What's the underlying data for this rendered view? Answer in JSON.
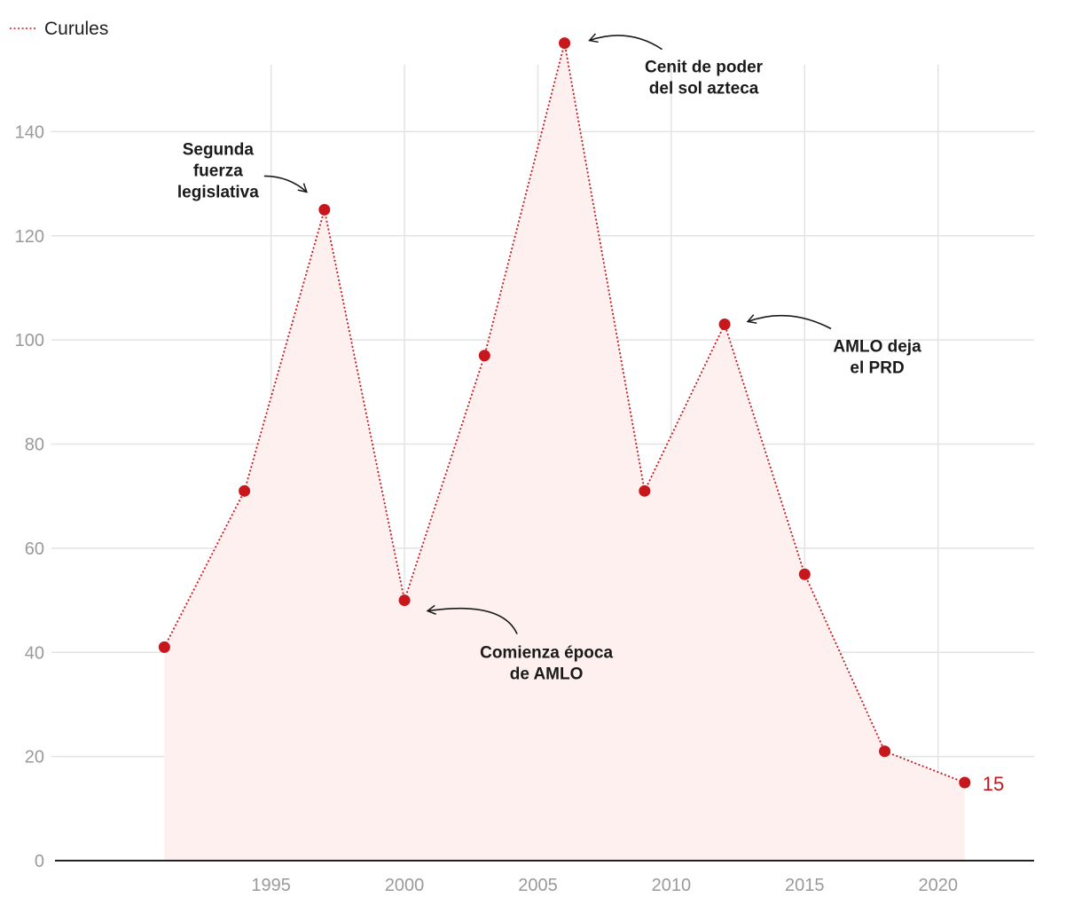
{
  "chart_data": {
    "type": "line",
    "x": [
      1991,
      1994,
      1997,
      2000,
      2003,
      2006,
      2009,
      2012,
      2015,
      2018,
      2021
    ],
    "series": [
      {
        "name": "Curules",
        "values": [
          41,
          71,
          125,
          50,
          97,
          157,
          71,
          103,
          55,
          21,
          15
        ]
      }
    ],
    "xticks": [
      1995,
      2000,
      2005,
      2010,
      2015,
      2020
    ],
    "yticks": [
      0,
      20,
      40,
      60,
      80,
      100,
      120,
      140
    ],
    "xlim": [
      1986.9,
      2023.6
    ],
    "ylim": [
      0,
      160
    ],
    "grid": true,
    "legend_position": "top-left",
    "end_label": "15",
    "annotations": [
      {
        "text": [
          "Segunda",
          "fuerza",
          "legislativa"
        ],
        "x": 1997,
        "y": 125,
        "side": "left"
      },
      {
        "text": [
          "Comienza época",
          "de AMLO"
        ],
        "x": 2000,
        "y": 50,
        "side": "below-right"
      },
      {
        "text": [
          "Cenit de poder",
          "del sol azteca"
        ],
        "x": 2006,
        "y": 157,
        "side": "right"
      },
      {
        "text": [
          "AMLO deja",
          "el PRD"
        ],
        "x": 2012,
        "y": 103,
        "side": "right"
      }
    ],
    "colors": {
      "line": "#c8161d",
      "area": "#fdf0ef",
      "grid": "#e3e3e3",
      "axis": "#222222",
      "tick_text": "#9a9a9a"
    }
  }
}
